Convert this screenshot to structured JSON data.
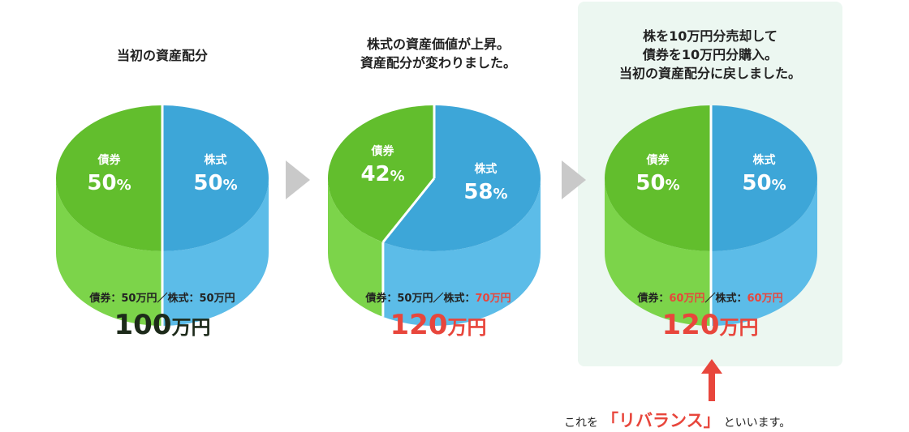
{
  "panels": [
    {
      "caption_lines": [
        "当初の資産配分"
      ],
      "segments": [
        {
          "label": "債券",
          "value": "50",
          "color": "#62be2d",
          "side_color": "#7cd44a"
        },
        {
          "label": "株式",
          "value": "50",
          "color": "#3da6d8",
          "side_color": "#5cbce8"
        }
      ],
      "summary": {
        "bond_label": "債券：",
        "bond_value": "50万円",
        "sep": "／",
        "stock_label": "株式：",
        "stock_value": "50万円"
      },
      "total": {
        "number": "100",
        "unit": "万円"
      }
    },
    {
      "caption_lines": [
        "株式の資産価値が上昇。",
        "資産配分が変わりました。"
      ],
      "segments": [
        {
          "label": "債券",
          "value": "42",
          "color": "#62be2d",
          "side_color": "#7cd44a"
        },
        {
          "label": "株式",
          "value": "58",
          "color": "#3da6d8",
          "side_color": "#5cbce8"
        }
      ],
      "summary": {
        "bond_label": "債券：",
        "bond_value": "50万円",
        "sep": "／",
        "stock_label": "株式：",
        "stock_value": "70万円"
      },
      "total": {
        "number": "120",
        "unit": "万円"
      }
    },
    {
      "caption_lines": [
        "株を10万円分売却して",
        "債券を10万円分購入。",
        "当初の資産配分に戻しました。"
      ],
      "segments": [
        {
          "label": "債券",
          "value": "50",
          "color": "#62be2d",
          "side_color": "#7cd44a"
        },
        {
          "label": "株式",
          "value": "50",
          "color": "#3da6d8",
          "side_color": "#5cbce8"
        }
      ],
      "summary": {
        "bond_label": "債券：",
        "bond_value": "60万円",
        "sep": "／",
        "stock_label": "株式：",
        "stock_value": "60万円"
      },
      "total": {
        "number": "120",
        "unit": "万円"
      }
    }
  ],
  "percent_sign": "%",
  "note": {
    "before": "これを",
    "bracket_text": "「リバランス」",
    "after": "といいます。"
  },
  "colors": {
    "accent_red": "#e8463c",
    "arrow_gray": "#c9c9c9",
    "highlight_bg": "#ecf7f1"
  }
}
